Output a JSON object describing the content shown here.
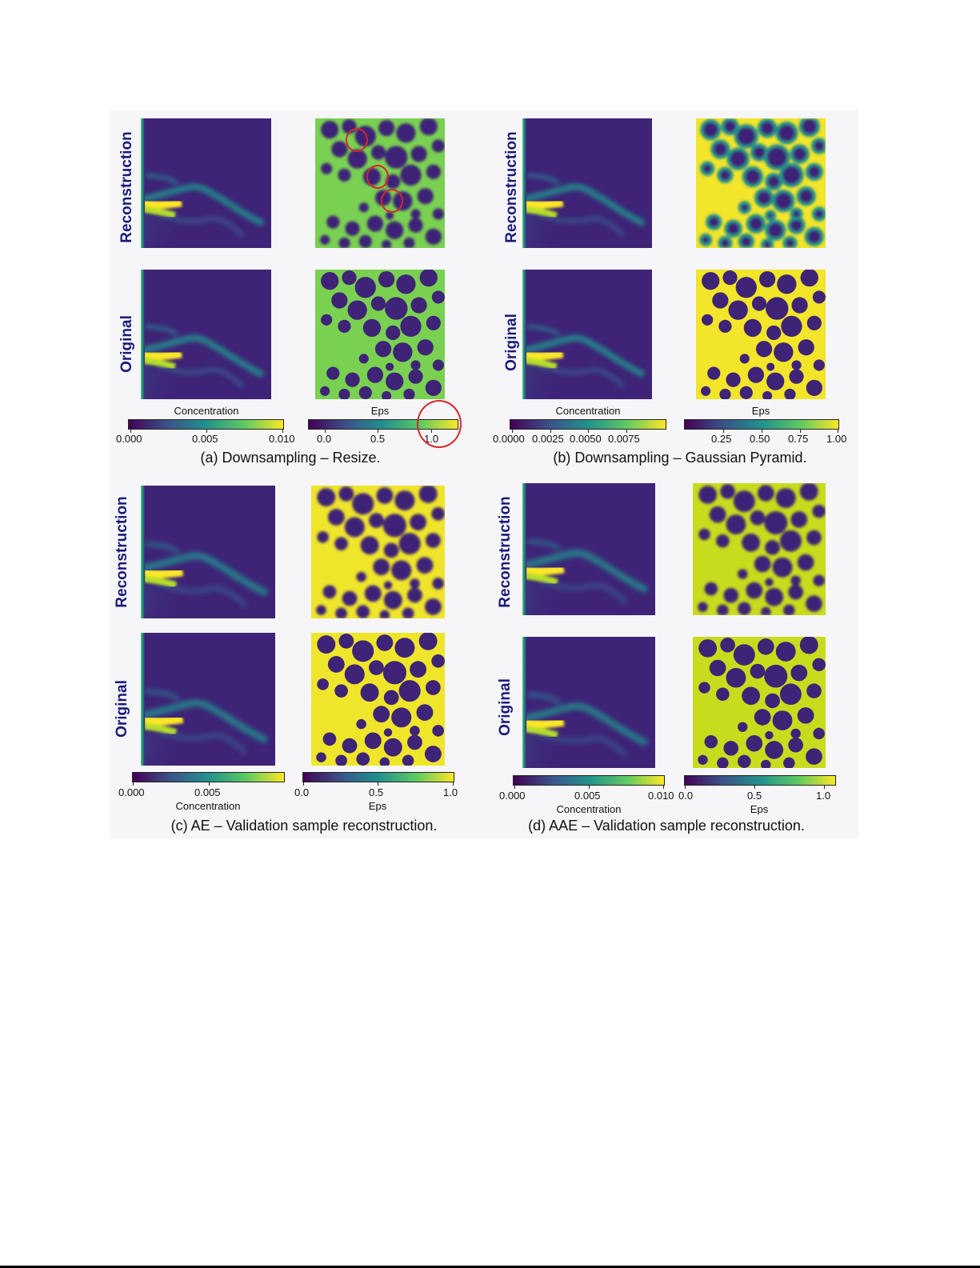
{
  "colors": {
    "viridis_dark": "#440154",
    "viridis_purple": "#3e2377",
    "viridis_teal": "#21918c",
    "viridis_green": "#5ec962",
    "viridis_yellow": "#fde725",
    "highlight_red": "#d8262b",
    "label_navy": "#1a1a7a"
  },
  "row_labels": {
    "reconstruction": "Reconstruction",
    "original": "Original"
  },
  "colorbar_titles": {
    "concentration": "Concentration",
    "eps": "Eps"
  },
  "panels": {
    "a": {
      "caption": "(a) Downsampling – Resize.",
      "conc_ticks": [
        "0.000",
        "0.005",
        "0.010"
      ],
      "eps_ticks": [
        "0.0",
        "0.5",
        "1.0"
      ]
    },
    "b": {
      "caption": "(b) Downsampling – Gaussian Pyramid.",
      "conc_ticks": [
        "0.0000",
        "0.0025",
        "0.0050",
        "0.0075"
      ],
      "eps_ticks": [
        "0.25",
        "0.50",
        "0.75",
        "1.00"
      ]
    },
    "c": {
      "caption": "(c) AE – Validation sample reconstruction.",
      "conc_ticks": [
        "0.000",
        "0.005"
      ],
      "eps_ticks": [
        "0.0",
        "0.5",
        "1.0"
      ]
    },
    "d": {
      "caption": "(d) AAE – Validation sample reconstruction.",
      "conc_ticks": [
        "0.000",
        "0.005",
        "0.010"
      ],
      "eps_ticks": [
        "0.0",
        "0.5",
        "1.0"
      ]
    }
  }
}
